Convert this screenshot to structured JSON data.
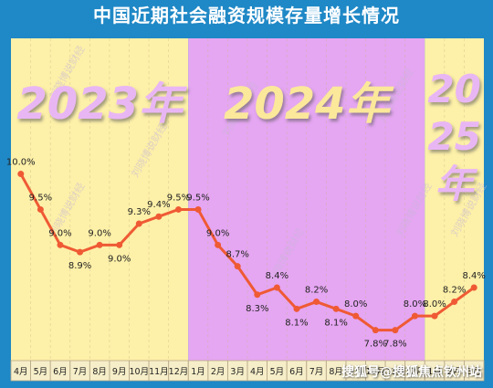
{
  "title": "中国近期社会融资规模存量增长情况",
  "watermark": "搜狐号@搜狐焦点钦州站",
  "panel_watermark": "刘晓博说财经",
  "colors": {
    "background": "#1f88c6",
    "year_2023_bg": "#fdf0a8",
    "year_2024_bg": "#e5a6f2",
    "year_2025_bg": "#fdf0a8",
    "line": "#ef5a34",
    "year_text": "#e9b6f4"
  },
  "chart_data": {
    "type": "line",
    "title": "中国近期社会融资规模存量增长情况",
    "year_labels": [
      {
        "label": "2023年",
        "start_index": 0,
        "end_index": 8
      },
      {
        "label": "2024年",
        "start_index": 9,
        "end_index": 20
      },
      {
        "label": "2025年",
        "start_index": 21,
        "end_index": 23
      }
    ],
    "categories": [
      "4月",
      "5月",
      "6月",
      "7月",
      "8月",
      "9月",
      "10月",
      "11月",
      "12月",
      "1月",
      "2月",
      "3月",
      "4月",
      "5月",
      "6月",
      "7月",
      "8月",
      "9月",
      "10月",
      "11月",
      "12月",
      "1月",
      "2月",
      "3月"
    ],
    "series": [
      {
        "values": [
          10.0,
          9.5,
          9.0,
          8.9,
          9.0,
          9.0,
          9.3,
          9.4,
          9.5,
          9.5,
          9.0,
          8.7,
          8.3,
          8.4,
          8.1,
          8.2,
          8.1,
          8.0,
          7.8,
          7.8,
          8.0,
          8.0,
          8.2,
          8.4
        ],
        "labels": [
          "10.0%",
          "9.5%",
          "9.0%",
          "8.9%",
          "9.0%",
          "9.0%",
          "9.3%",
          "9.4%",
          "9.5%",
          "9.5%",
          "9.0%",
          "8.7%",
          "8.3%",
          "8.4%",
          "8.1%",
          "8.2%",
          "8.1%",
          "8.0%",
          "7.8%",
          "7.8%",
          "8.0%",
          "8.0%",
          "8.2%",
          "8.4%"
        ]
      }
    ],
    "ylim": [
      7.5,
      10.2
    ],
    "grid": false,
    "legend": "none"
  }
}
